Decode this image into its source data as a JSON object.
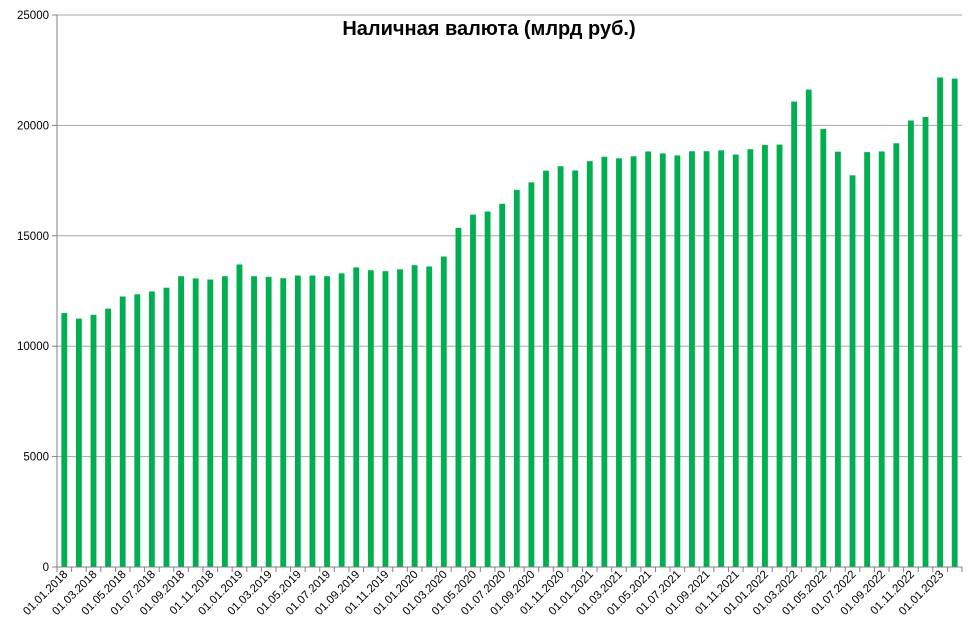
{
  "chart_data": {
    "type": "bar",
    "title": "Наличная валюта (млрд руб.)",
    "xlabel": "",
    "ylabel": "",
    "ylim": [
      0,
      25000
    ],
    "yticks": [
      0,
      5000,
      10000,
      15000,
      20000,
      25000
    ],
    "grid": true,
    "bar_color": "#00B050",
    "categories": [
      "01.01.2018",
      "01.02.2018",
      "01.03.2018",
      "01.04.2018",
      "01.05.2018",
      "01.06.2018",
      "01.07.2018",
      "01.08.2018",
      "01.09.2018",
      "01.10.2018",
      "01.11.2018",
      "01.12.2018",
      "01.01.2019",
      "01.02.2019",
      "01.03.2019",
      "01.04.2019",
      "01.05.2019",
      "01.06.2019",
      "01.07.2019",
      "01.08.2019",
      "01.09.2019",
      "01.10.2019",
      "01.11.2019",
      "01.12.2019",
      "01.01.2020",
      "01.02.2020",
      "01.03.2020",
      "01.04.2020",
      "01.05.2020",
      "01.06.2020",
      "01.07.2020",
      "01.08.2020",
      "01.09.2020",
      "01.10.2020",
      "01.11.2020",
      "01.12.2020",
      "01.01.2021",
      "01.02.2021",
      "01.03.2021",
      "01.04.2021",
      "01.05.2021",
      "01.06.2021",
      "01.07.2021",
      "01.08.2021",
      "01.09.2021",
      "01.10.2021",
      "01.11.2021",
      "01.12.2021",
      "01.01.2022",
      "01.02.2022",
      "01.03.2022",
      "01.04.2022",
      "01.05.2022",
      "01.06.2022",
      "01.07.2022",
      "01.08.2022",
      "01.09.2022",
      "01.10.2022",
      "01.11.2022",
      "01.12.2022",
      "01.01.2023",
      "01.02.2023"
    ],
    "tick_labels": [
      "01.01.2018",
      "01.03.2018",
      "01.05.2018",
      "01.07.2018",
      "01.09.2018",
      "01.11.2018",
      "01.01.2019",
      "01.03.2019",
      "01.05.2019",
      "01.07.2019",
      "01.09.2019",
      "01.11.2019",
      "01.01.2020",
      "01.03.2020",
      "01.05.2020",
      "01.07.2020",
      "01.09.2020",
      "01.11.2020",
      "01.01.2021",
      "01.03.2021",
      "01.05.2021",
      "01.07.2021",
      "01.09.2021",
      "01.11.2021",
      "01.01.2022",
      "01.03.2022",
      "01.05.2022",
      "01.07.2022",
      "01.09.2022",
      "01.11.2022",
      "01.01.2023"
    ],
    "values": [
      11500,
      11250,
      11420,
      11700,
      12250,
      12350,
      12480,
      12650,
      13170,
      13070,
      13020,
      13170,
      13700,
      13170,
      13140,
      13080,
      13200,
      13200,
      13170,
      13300,
      13570,
      13440,
      13400,
      13480,
      13670,
      13610,
      14060,
      15360,
      15960,
      16100,
      16450,
      17080,
      17420,
      17950,
      18150,
      17960,
      18380,
      18580,
      18510,
      18600,
      18820,
      18730,
      18640,
      18830,
      18830,
      18870,
      18680,
      18920,
      19110,
      19130,
      21080,
      21620,
      19840,
      18810,
      17740,
      18790,
      18820,
      19190,
      20220,
      20380,
      22170,
      22120
    ]
  }
}
